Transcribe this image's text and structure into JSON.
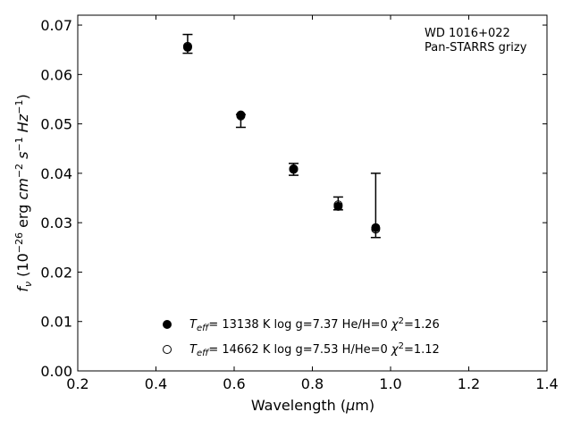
{
  "chart_data": {
    "type": "scatter",
    "annotation_lines": [
      "WD 1016+022",
      "Pan-STARRS grizy"
    ],
    "xlabel": "Wavelength (μm)",
    "ylabel": "fν (10⁻²⁶ erg cm⁻² s⁻¹ Hz⁻¹)",
    "xlim": [
      0.2,
      1.4
    ],
    "ylim": [
      0.0,
      0.072
    ],
    "xticks": [
      0.2,
      0.4,
      0.6,
      0.8,
      1.0,
      1.2,
      1.4
    ],
    "xtick_labels": [
      "0.2",
      "0.4",
      "0.6",
      "0.8",
      "1.0",
      "1.2",
      "1.4"
    ],
    "yticks": [
      0.0,
      0.01,
      0.02,
      0.03,
      0.04,
      0.05,
      0.06,
      0.07
    ],
    "ytick_labels": [
      "0.00",
      "0.01",
      "0.02",
      "0.03",
      "0.04",
      "0.05",
      "0.06",
      "0.07"
    ],
    "grid": false,
    "legend_position": "lower-center",
    "observed": {
      "bands": [
        "g",
        "r",
        "i",
        "z",
        "y"
      ],
      "x": [
        0.481,
        0.617,
        0.752,
        0.866,
        0.962
      ],
      "y": [
        0.0662,
        0.0517,
        0.0408,
        0.0339,
        0.0336
      ],
      "yerr_low": [
        0.0019,
        0.0024,
        0.0012,
        0.0013,
        0.0066
      ],
      "yerr_high": [
        0.0019,
        0.0002,
        0.0012,
        0.0013,
        0.0064
      ]
    },
    "series": [
      {
        "marker": "filled-circle",
        "label": "Teff= 13138 K  log g=7.37  He/H=0  χ²=1.26",
        "x": [
          0.481,
          0.617,
          0.752,
          0.866,
          0.962
        ],
        "y": [
          0.0655,
          0.0518,
          0.0408,
          0.0333,
          0.029
        ]
      },
      {
        "marker": "open-circle",
        "label": "Teff= 14662 K  log g=7.53  H/He=0  χ²=1.12",
        "x": [
          0.481,
          0.617,
          0.752,
          0.866,
          0.962
        ],
        "y": [
          0.0657,
          0.0516,
          0.0409,
          0.0336,
          0.0287
        ]
      }
    ],
    "colors": {
      "marker": "#000000",
      "axes": "#000000",
      "background": "#ffffff"
    }
  }
}
